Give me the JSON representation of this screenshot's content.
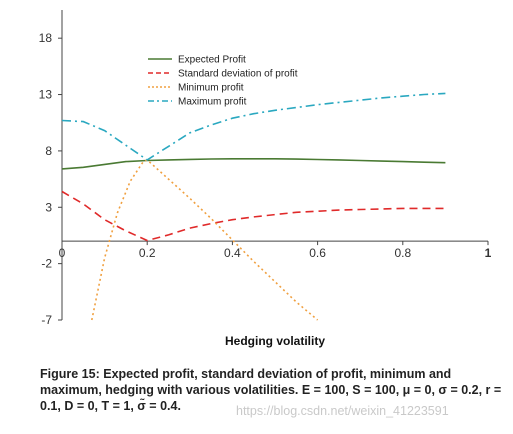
{
  "chart_data": {
    "type": "line",
    "xlabel": "Hedging volatility",
    "xlim": [
      0,
      1
    ],
    "ylim": [
      -7,
      20.5
    ],
    "x_ticks": [
      {
        "value": 0,
        "label": "0",
        "bold": false
      },
      {
        "value": 0.2,
        "label": "0.2",
        "bold": false
      },
      {
        "value": 0.4,
        "label": "0.4",
        "bold": false
      },
      {
        "value": 0.6,
        "label": "0.6",
        "bold": false
      },
      {
        "value": 0.8,
        "label": "0.8",
        "bold": false
      },
      {
        "value": 1,
        "label": "1",
        "bold": true
      }
    ],
    "y_ticks": [
      {
        "value": 18,
        "label": "18"
      },
      {
        "value": 13,
        "label": "13"
      },
      {
        "value": 8,
        "label": "8"
      },
      {
        "value": 3,
        "label": "3"
      },
      {
        "value": -2,
        "label": "-2"
      },
      {
        "value": -7,
        "label": "-7"
      }
    ],
    "x_axis_at": 0,
    "grid": false,
    "legend_position": "top-center",
    "series": [
      {
        "name": "Expected Profit",
        "color": "#4a7a33",
        "dash": "solid",
        "x": [
          0,
          0.05,
          0.1,
          0.15,
          0.2,
          0.25,
          0.3,
          0.35,
          0.4,
          0.45,
          0.5,
          0.55,
          0.6,
          0.65,
          0.7,
          0.75,
          0.8,
          0.85,
          0.9
        ],
        "y": [
          6.4,
          6.55,
          6.8,
          7.05,
          7.15,
          7.2,
          7.25,
          7.28,
          7.3,
          7.3,
          7.3,
          7.27,
          7.24,
          7.2,
          7.15,
          7.1,
          7.05,
          7.0,
          6.95
        ]
      },
      {
        "name": "Standard deviation of profit",
        "color": "#e02a2a",
        "dash": "dashed",
        "x": [
          0,
          0.05,
          0.1,
          0.15,
          0.2,
          0.25,
          0.3,
          0.35,
          0.4,
          0.45,
          0.5,
          0.55,
          0.6,
          0.65,
          0.7,
          0.75,
          0.8,
          0.85,
          0.9
        ],
        "y": [
          4.4,
          3.3,
          1.9,
          0.9,
          0.05,
          0.55,
          1.15,
          1.55,
          1.9,
          2.15,
          2.35,
          2.55,
          2.65,
          2.75,
          2.8,
          2.85,
          2.9,
          2.9,
          2.9
        ]
      },
      {
        "name": "Minimum profit",
        "color": "#f0a040",
        "dash": "dotted",
        "x": [
          0.07,
          0.1,
          0.13,
          0.16,
          0.19,
          0.2,
          0.25,
          0.3,
          0.35,
          0.4,
          0.45,
          0.5,
          0.55,
          0.6
        ],
        "y": [
          -7,
          -1.5,
          2.5,
          5.3,
          7.0,
          7.2,
          5.5,
          3.8,
          2.0,
          0.1,
          -1.8,
          -3.6,
          -5.4,
          -7.0
        ]
      },
      {
        "name": "Maximum profit",
        "color": "#2aa8c0",
        "dash": "dashdot",
        "x": [
          0,
          0.05,
          0.1,
          0.15,
          0.2,
          0.25,
          0.3,
          0.35,
          0.4,
          0.45,
          0.5,
          0.55,
          0.6,
          0.65,
          0.7,
          0.75,
          0.8,
          0.85,
          0.9
        ],
        "y": [
          10.7,
          10.6,
          9.8,
          8.5,
          7.2,
          8.4,
          9.6,
          10.3,
          10.9,
          11.3,
          11.6,
          11.85,
          12.1,
          12.3,
          12.5,
          12.7,
          12.85,
          13.0,
          13.1
        ]
      }
    ]
  },
  "caption": {
    "label": "Figure 15:",
    "text": "Expected profit, standard deviation of profit, minimum and maximum, hedging with various volatilities.",
    "params": "E = 100, S = 100, μ = 0, σ = 0.2, r = 0.1, D = 0, T = 1, σ̃ = 0.4."
  },
  "watermark": "https://blog.csdn.net/weixin_41223591"
}
